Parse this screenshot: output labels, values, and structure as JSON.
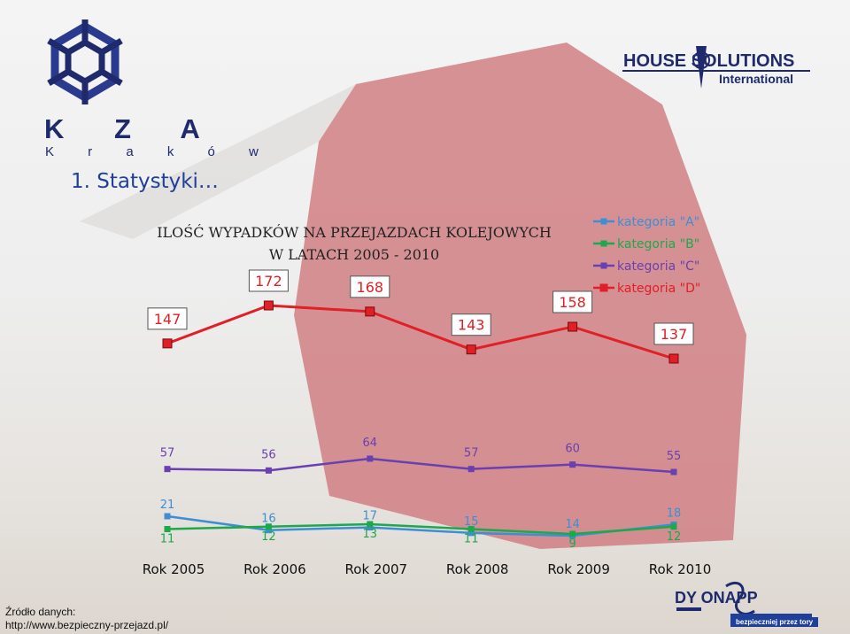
{
  "slide": {
    "heading": "1. Statystyki…",
    "logo_left_letters": "K Z A",
    "logo_left_city": "K r a k ó w",
    "logo_right_main": "HOUSE SOLUTIONS",
    "logo_right_sub": "International",
    "source_line1": "Źródło danych:",
    "source_line2": "http://www.bezpieczny-przejazd.pl/",
    "bottom_logo": "DY  ONAPP",
    "bottom_logo_tagline": "bezpieczniej przez tory"
  },
  "colors": {
    "series_A": "#3c8fd4",
    "series_B": "#1ea84c",
    "series_C": "#6a3fb0",
    "series_D": "#e01f26",
    "heading": "#1f3f9b",
    "logo_navy": "#1f2a6d",
    "red_shape": "#cf7b80"
  },
  "chart_data": {
    "type": "line",
    "title_line1": "ILOŚĆ WYPADKÓW NA PRZEJAZDACH KOLEJOWYCH",
    "title_line2": "W LATACH 2005 - 2010",
    "categories": [
      "Rok 2005",
      "Rok 2006",
      "Rok 2007",
      "Rok 2008",
      "Rok 2009",
      "Rok 2010"
    ],
    "series": [
      {
        "name": "kategoria \"A\"",
        "values": [
          21,
          16,
          17,
          15,
          14,
          18
        ]
      },
      {
        "name": "kategoria \"B\"",
        "values": [
          11,
          12,
          13,
          11,
          9,
          12
        ]
      },
      {
        "name": "kategoria \"C\"",
        "values": [
          57,
          56,
          64,
          57,
          60,
          55
        ]
      },
      {
        "name": "kategoria \"D\"",
        "values": [
          147,
          172,
          168,
          143,
          158,
          137
        ]
      }
    ],
    "legend": "top-right",
    "grid": false,
    "y_axis_visible": false
  }
}
